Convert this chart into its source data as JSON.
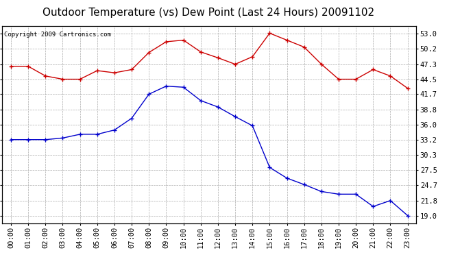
{
  "title": "Outdoor Temperature (vs) Dew Point (Last 24 Hours) 20091102",
  "copyright": "Copyright 2009 Cartronics.com",
  "hours": [
    "00:00",
    "01:00",
    "02:00",
    "03:00",
    "04:00",
    "05:00",
    "06:00",
    "07:00",
    "08:00",
    "09:00",
    "10:00",
    "11:00",
    "12:00",
    "13:00",
    "14:00",
    "15:00",
    "16:00",
    "17:00",
    "18:00",
    "19:00",
    "20:00",
    "21:00",
    "22:00",
    "23:00"
  ],
  "temp": [
    46.9,
    46.9,
    45.1,
    44.5,
    44.5,
    46.1,
    45.7,
    46.3,
    49.5,
    51.5,
    51.8,
    49.6,
    48.5,
    47.3,
    48.7,
    53.1,
    51.8,
    50.5,
    47.3,
    44.5,
    44.5,
    46.3,
    45.1,
    42.8
  ],
  "dew": [
    33.2,
    33.2,
    33.2,
    33.5,
    34.2,
    34.2,
    35.0,
    37.2,
    41.7,
    43.2,
    43.0,
    40.5,
    39.3,
    37.5,
    35.8,
    28.0,
    26.0,
    24.8,
    23.5,
    23.0,
    23.0,
    20.7,
    21.8,
    19.0
  ],
  "temp_color": "#cc0000",
  "dew_color": "#0000cc",
  "bg_color": "#ffffff",
  "grid_color": "#aaaaaa",
  "yticks": [
    19.0,
    21.8,
    24.7,
    27.5,
    30.3,
    33.2,
    36.0,
    38.8,
    41.7,
    44.5,
    47.3,
    50.2,
    53.0
  ],
  "ymin": 17.5,
  "ymax": 54.5,
  "title_fontsize": 11,
  "tick_fontsize": 7.5,
  "copyright_fontsize": 6.5
}
